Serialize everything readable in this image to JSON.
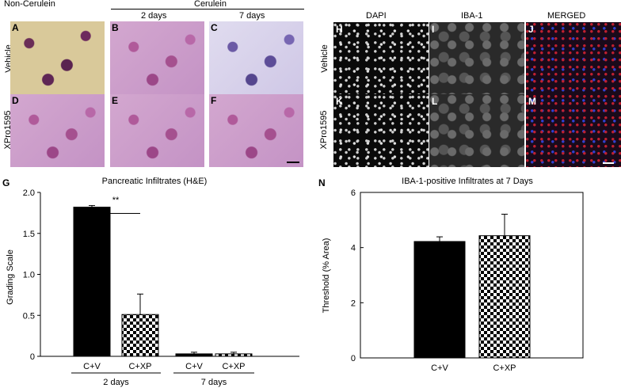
{
  "headers": {
    "non_cerulein": "Non-Cerulein",
    "cerulein": "Cerulein",
    "days2": "2 days",
    "days7": "7 days",
    "dapi": "DAPI",
    "iba1": "IBA-1",
    "merged": "MERGED",
    "vehicle": "Vehicle",
    "xpro": "XPro1595"
  },
  "panels": {
    "A": "A",
    "B": "B",
    "C": "C",
    "D": "D",
    "E": "E",
    "F": "F",
    "H": "H",
    "I": "I",
    "J": "J",
    "K": "K",
    "L": "L",
    "M": "M",
    "G": "G",
    "N": "N"
  },
  "chart_data": [
    {
      "type": "bar",
      "title": "Pancreatic Infiltrates (H&E)",
      "ylabel": "Grading Scale",
      "ylim": [
        0,
        2.0
      ],
      "yticks": [
        "0",
        "0.5",
        "1.0",
        "1.5",
        "2.0"
      ],
      "groups": [
        {
          "name": "2 days",
          "categories": [
            "C+V",
            "C+XP"
          ],
          "values": [
            1.82,
            0.51
          ],
          "errors": [
            0.02,
            0.25
          ]
        },
        {
          "name": "7 days",
          "categories": [
            "C+V",
            "C+XP"
          ],
          "values": [
            0.03,
            0.03
          ],
          "errors": [
            0.02,
            0.02
          ]
        }
      ],
      "significance": "**",
      "series_styles": {
        "C+V": "solid-black",
        "C+XP": "checkerboard"
      }
    },
    {
      "type": "bar",
      "title": "IBA-1-positive Infiltrates at 7 Days",
      "ylabel": "Threshold (% Area)",
      "ylim": [
        0,
        6
      ],
      "yticks": [
        "0",
        "2",
        "4",
        "6"
      ],
      "categories": [
        "C+V",
        "C+XP"
      ],
      "values": [
        4.22,
        4.43
      ],
      "errors": [
        0.17,
        0.78
      ],
      "series_styles": {
        "C+V": "solid-black",
        "C+XP": "checkerboard"
      }
    }
  ]
}
